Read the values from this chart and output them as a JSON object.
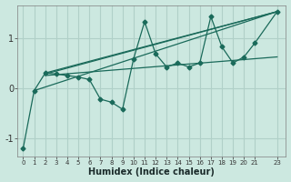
{
  "xlabel": "Humidex (Indice chaleur)",
  "bg_color": "#cce8e0",
  "grid_color": "#b0d0c8",
  "line_color": "#1a6a5a",
  "xlim": [
    -0.5,
    23.8
  ],
  "ylim": [
    -1.35,
    1.65
  ],
  "yticks": [
    -1,
    0,
    1
  ],
  "xticks": [
    0,
    1,
    2,
    3,
    4,
    5,
    6,
    7,
    8,
    9,
    10,
    11,
    12,
    13,
    14,
    15,
    16,
    17,
    18,
    19,
    20,
    21,
    23
  ],
  "series1_x": [
    0,
    1,
    2,
    3,
    4,
    5,
    6,
    7,
    8,
    9,
    10,
    11,
    12,
    13,
    14,
    15,
    16,
    17,
    18,
    19,
    20,
    21,
    23
  ],
  "series1_y": [
    -1.2,
    -0.05,
    0.3,
    0.28,
    0.25,
    0.22,
    0.17,
    -0.22,
    -0.28,
    -0.42,
    0.58,
    1.32,
    0.68,
    0.42,
    0.5,
    0.42,
    0.5,
    1.42,
    0.82,
    0.5,
    0.62,
    0.9,
    1.52
  ],
  "line1_x": [
    1,
    23
  ],
  "line1_y": [
    -0.05,
    1.52
  ],
  "line2_x": [
    2,
    23
  ],
  "line2_y": [
    0.3,
    1.52
  ],
  "line3_x": [
    2,
    23
  ],
  "line3_y": [
    0.28,
    1.52
  ],
  "line4_x": [
    2,
    23
  ],
  "line4_y": [
    0.25,
    0.62
  ]
}
